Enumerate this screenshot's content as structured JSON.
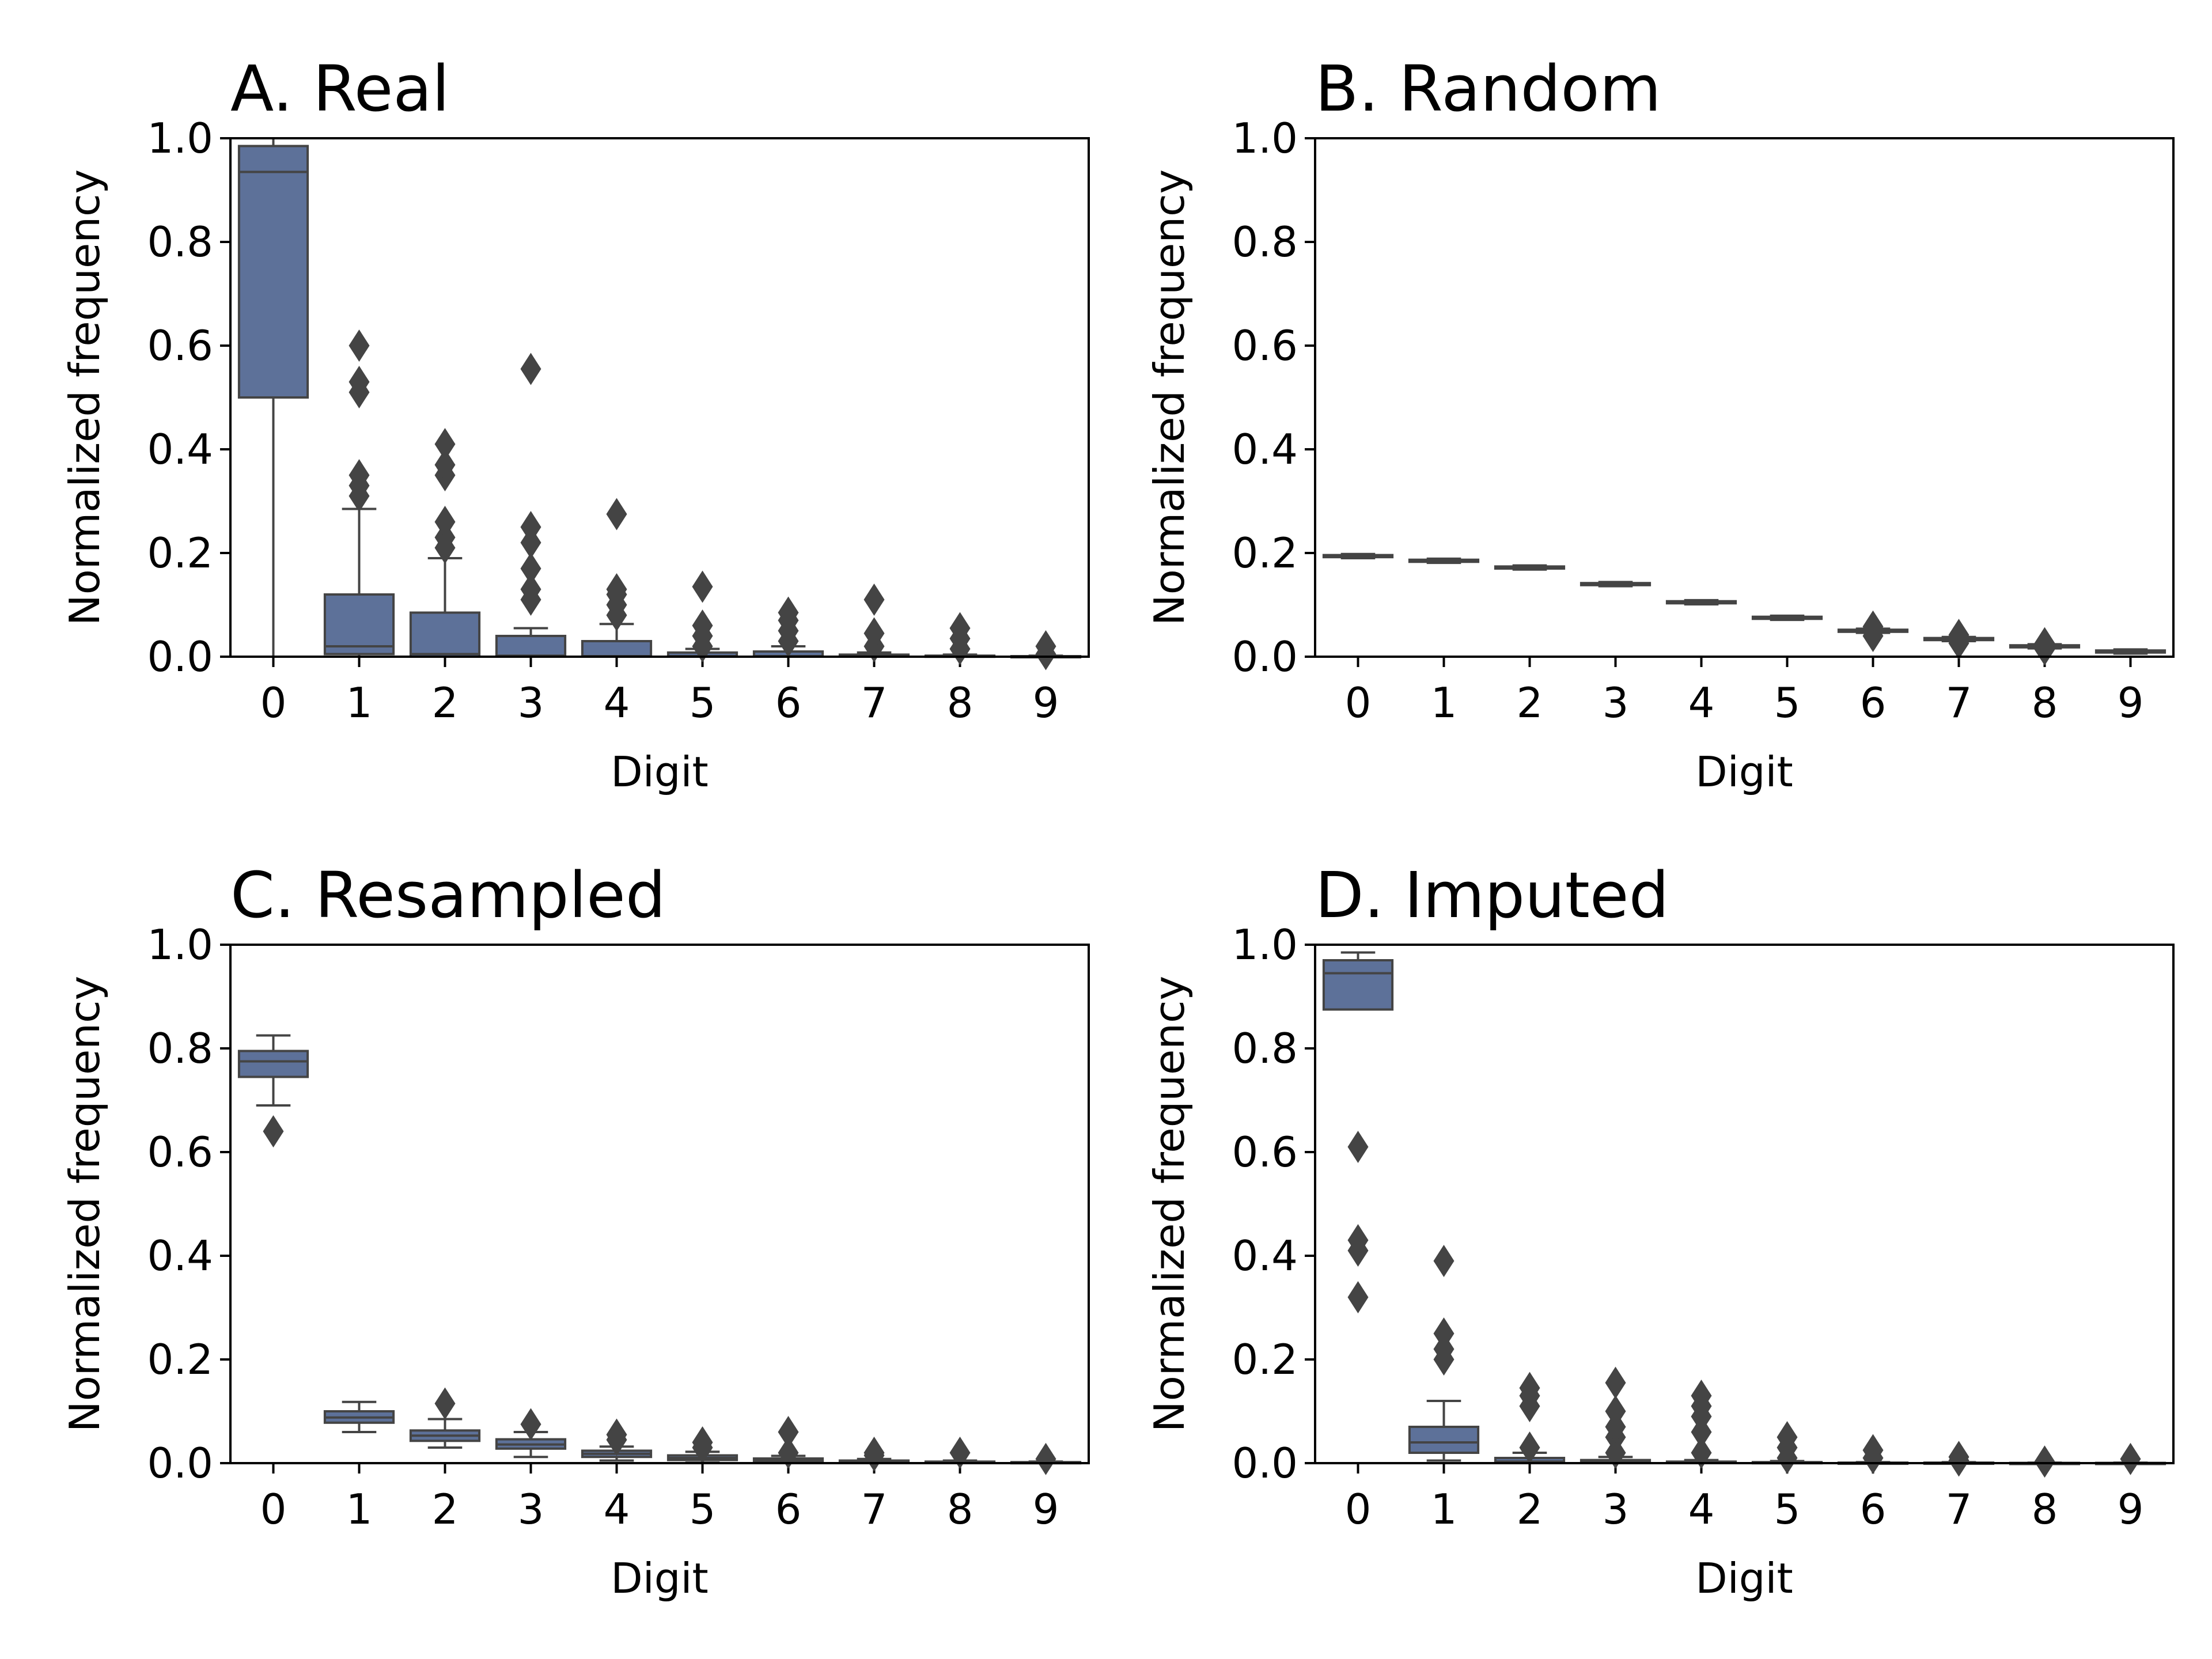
{
  "figure": {
    "box_fill": "#5d7199",
    "line_color": "#444444",
    "flier_color": "#444444"
  },
  "chart_data": [
    {
      "type": "box",
      "title": "A. Real",
      "xlabel": "Digit",
      "ylabel": "Normalized frequency",
      "ylim": [
        0,
        1
      ],
      "yticks": [
        "0.0",
        "0.2",
        "0.4",
        "0.6",
        "0.8",
        "1.0"
      ],
      "categories": [
        "0",
        "1",
        "2",
        "3",
        "4",
        "5",
        "6",
        "7",
        "8",
        "9"
      ],
      "boxes": [
        {
          "q1": 0.5,
          "median": 0.935,
          "q3": 0.985,
          "whislo": 0.0,
          "whishi": 1.0,
          "fliers": []
        },
        {
          "q1": 0.005,
          "median": 0.02,
          "q3": 0.12,
          "whislo": 0.0,
          "whishi": 0.285,
          "fliers": [
            0.31,
            0.33,
            0.35,
            0.51,
            0.53,
            0.6
          ]
        },
        {
          "q1": 0.0,
          "median": 0.005,
          "q3": 0.085,
          "whislo": 0.0,
          "whishi": 0.19,
          "fliers": [
            0.21,
            0.23,
            0.26,
            0.35,
            0.37,
            0.41
          ]
        },
        {
          "q1": 0.0,
          "median": 0.002,
          "q3": 0.04,
          "whislo": 0.0,
          "whishi": 0.055,
          "fliers": [
            0.11,
            0.13,
            0.17,
            0.22,
            0.25,
            0.555
          ]
        },
        {
          "q1": 0.0,
          "median": 0.001,
          "q3": 0.03,
          "whislo": 0.0,
          "whishi": 0.063,
          "fliers": [
            0.08,
            0.1,
            0.12,
            0.13,
            0.275
          ]
        },
        {
          "q1": 0.0,
          "median": 0.001,
          "q3": 0.008,
          "whislo": 0.0,
          "whishi": 0.015,
          "fliers": [
            0.02,
            0.04,
            0.06,
            0.135
          ]
        },
        {
          "q1": 0.0,
          "median": 0.001,
          "q3": 0.01,
          "whislo": 0.0,
          "whishi": 0.02,
          "fliers": [
            0.03,
            0.05,
            0.07,
            0.085
          ]
        },
        {
          "q1": 0.0,
          "median": 0.0,
          "q3": 0.004,
          "whislo": 0.0,
          "whishi": 0.008,
          "fliers": [
            0.02,
            0.045,
            0.11
          ]
        },
        {
          "q1": 0.0,
          "median": 0.0,
          "q3": 0.002,
          "whislo": 0.0,
          "whishi": 0.004,
          "fliers": [
            0.015,
            0.035,
            0.055
          ]
        },
        {
          "q1": 0.0,
          "median": 0.0,
          "q3": 0.001,
          "whislo": 0.0,
          "whishi": 0.002,
          "fliers": [
            0.005,
            0.02
          ]
        }
      ]
    },
    {
      "type": "box",
      "title": "B. Random",
      "xlabel": "Digit",
      "ylabel": "Normalized frequency",
      "ylim": [
        0,
        1
      ],
      "yticks": [
        "0.0",
        "0.2",
        "0.4",
        "0.6",
        "0.8",
        "1.0"
      ],
      "categories": [
        "0",
        "1",
        "2",
        "3",
        "4",
        "5",
        "6",
        "7",
        "8",
        "9"
      ],
      "boxes": [
        {
          "q1": 0.192,
          "median": 0.194,
          "q3": 0.196,
          "whislo": 0.19,
          "whishi": 0.198,
          "fliers": []
        },
        {
          "q1": 0.183,
          "median": 0.185,
          "q3": 0.187,
          "whislo": 0.181,
          "whishi": 0.189,
          "fliers": []
        },
        {
          "q1": 0.17,
          "median": 0.172,
          "q3": 0.174,
          "whislo": 0.168,
          "whishi": 0.176,
          "fliers": []
        },
        {
          "q1": 0.138,
          "median": 0.14,
          "q3": 0.142,
          "whislo": 0.136,
          "whishi": 0.144,
          "fliers": []
        },
        {
          "q1": 0.103,
          "median": 0.105,
          "q3": 0.107,
          "whislo": 0.101,
          "whishi": 0.109,
          "fliers": []
        },
        {
          "q1": 0.073,
          "median": 0.075,
          "q3": 0.077,
          "whislo": 0.071,
          "whishi": 0.079,
          "fliers": []
        },
        {
          "q1": 0.048,
          "median": 0.05,
          "q3": 0.052,
          "whislo": 0.046,
          "whishi": 0.054,
          "fliers": [
            0.04,
            0.058
          ]
        },
        {
          "q1": 0.032,
          "median": 0.034,
          "q3": 0.036,
          "whislo": 0.03,
          "whishi": 0.038,
          "fliers": [
            0.026,
            0.042
          ]
        },
        {
          "q1": 0.018,
          "median": 0.02,
          "q3": 0.022,
          "whislo": 0.016,
          "whishi": 0.024,
          "fliers": [
            0.014,
            0.026
          ]
        },
        {
          "q1": 0.008,
          "median": 0.01,
          "q3": 0.012,
          "whislo": 0.006,
          "whishi": 0.014,
          "fliers": []
        }
      ]
    },
    {
      "type": "box",
      "title": "C. Resampled",
      "xlabel": "Digit",
      "ylabel": "Normalized frequency",
      "ylim": [
        0,
        1
      ],
      "yticks": [
        "0.0",
        "0.2",
        "0.4",
        "0.6",
        "0.8",
        "1.0"
      ],
      "categories": [
        "0",
        "1",
        "2",
        "3",
        "4",
        "5",
        "6",
        "7",
        "8",
        "9"
      ],
      "boxes": [
        {
          "q1": 0.745,
          "median": 0.775,
          "q3": 0.795,
          "whislo": 0.69,
          "whishi": 0.825,
          "fliers": [
            0.64
          ]
        },
        {
          "q1": 0.078,
          "median": 0.088,
          "q3": 0.1,
          "whislo": 0.06,
          "whishi": 0.118,
          "fliers": []
        },
        {
          "q1": 0.043,
          "median": 0.053,
          "q3": 0.063,
          "whislo": 0.03,
          "whishi": 0.085,
          "fliers": [
            0.115
          ]
        },
        {
          "q1": 0.028,
          "median": 0.036,
          "q3": 0.046,
          "whislo": 0.012,
          "whishi": 0.06,
          "fliers": [
            0.075
          ]
        },
        {
          "q1": 0.012,
          "median": 0.018,
          "q3": 0.024,
          "whislo": 0.005,
          "whishi": 0.032,
          "fliers": [
            0.045,
            0.055
          ]
        },
        {
          "q1": 0.006,
          "median": 0.01,
          "q3": 0.015,
          "whislo": 0.001,
          "whishi": 0.022,
          "fliers": [
            0.03,
            0.04
          ]
        },
        {
          "q1": 0.003,
          "median": 0.006,
          "q3": 0.009,
          "whislo": 0.0,
          "whishi": 0.014,
          "fliers": [
            0.02,
            0.06
          ]
        },
        {
          "q1": 0.002,
          "median": 0.003,
          "q3": 0.005,
          "whislo": 0.0,
          "whishi": 0.008,
          "fliers": [
            0.015,
            0.02
          ]
        },
        {
          "q1": 0.001,
          "median": 0.002,
          "q3": 0.003,
          "whislo": 0.0,
          "whishi": 0.005,
          "fliers": [
            0.02
          ]
        },
        {
          "q1": 0.0,
          "median": 0.001,
          "q3": 0.002,
          "whislo": 0.0,
          "whishi": 0.003,
          "fliers": [
            0.008
          ]
        }
      ]
    },
    {
      "type": "box",
      "title": "D. Imputed",
      "xlabel": "Digit",
      "ylabel": "Normalized frequency",
      "ylim": [
        0,
        1
      ],
      "yticks": [
        "0.0",
        "0.2",
        "0.4",
        "0.6",
        "0.8",
        "1.0"
      ],
      "categories": [
        "0",
        "1",
        "2",
        "3",
        "4",
        "5",
        "6",
        "7",
        "8",
        "9"
      ],
      "boxes": [
        {
          "q1": 0.875,
          "median": 0.945,
          "q3": 0.97,
          "whislo": 0.875,
          "whishi": 0.985,
          "fliers": [
            0.32,
            0.41,
            0.43,
            0.61
          ]
        },
        {
          "q1": 0.02,
          "median": 0.04,
          "q3": 0.07,
          "whislo": 0.005,
          "whishi": 0.12,
          "fliers": [
            0.2,
            0.22,
            0.25,
            0.39
          ]
        },
        {
          "q1": 0.0,
          "median": 0.003,
          "q3": 0.01,
          "whislo": 0.0,
          "whishi": 0.02,
          "fliers": [
            0.03,
            0.11,
            0.13,
            0.145
          ]
        },
        {
          "q1": 0.0,
          "median": 0.002,
          "q3": 0.006,
          "whislo": 0.0,
          "whishi": 0.012,
          "fliers": [
            0.02,
            0.05,
            0.07,
            0.1,
            0.155
          ]
        },
        {
          "q1": 0.0,
          "median": 0.001,
          "q3": 0.003,
          "whislo": 0.0,
          "whishi": 0.006,
          "fliers": [
            0.02,
            0.06,
            0.09,
            0.11,
            0.13
          ]
        },
        {
          "q1": 0.0,
          "median": 0.0,
          "q3": 0.002,
          "whislo": 0.0,
          "whishi": 0.004,
          "fliers": [
            0.01,
            0.03,
            0.05
          ]
        },
        {
          "q1": 0.0,
          "median": 0.0,
          "q3": 0.001,
          "whislo": 0.0,
          "whishi": 0.002,
          "fliers": [
            0.01,
            0.025
          ]
        },
        {
          "q1": 0.0,
          "median": 0.0,
          "q3": 0.001,
          "whislo": 0.0,
          "whishi": 0.002,
          "fliers": [
            0.005,
            0.012
          ]
        },
        {
          "q1": 0.0,
          "median": 0.0,
          "q3": 0.0005,
          "whislo": 0.0,
          "whishi": 0.001,
          "fliers": [
            0.003
          ]
        },
        {
          "q1": 0.0,
          "median": 0.0,
          "q3": 0.0005,
          "whislo": 0.0,
          "whishi": 0.001,
          "fliers": [
            0.008
          ]
        }
      ]
    }
  ]
}
